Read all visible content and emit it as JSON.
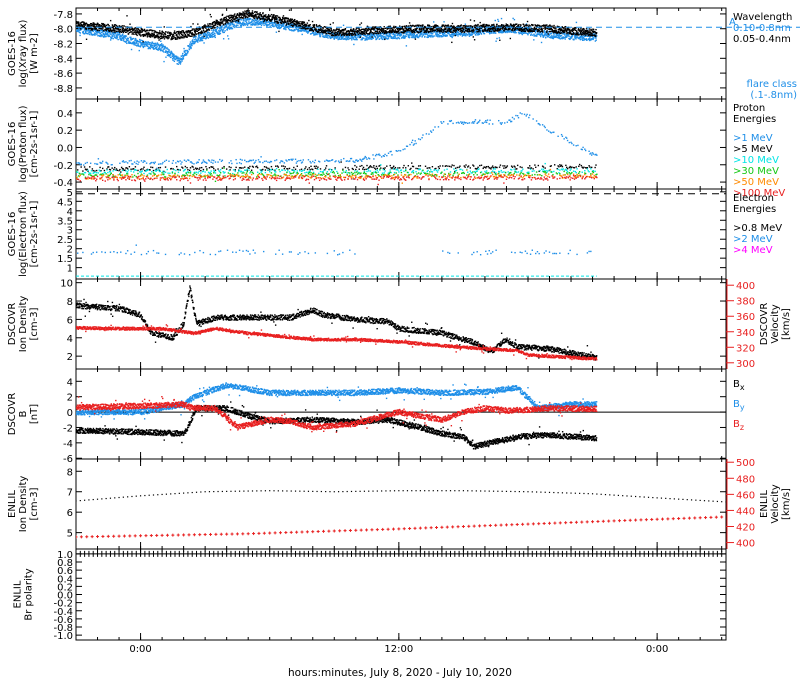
{
  "colors": {
    "black": "#000000",
    "blue": "#1f8fe8",
    "cyan": "#00e5e5",
    "green": "#14c814",
    "orange": "#ff8a00",
    "red": "#e82020",
    "magenta": "#ff00ff",
    "dodger": "#3399ff"
  },
  "time_axis": {
    "xlabel": "hours:minutes, July  8, 2020 - July 10, 2020",
    "ticks": [
      {
        "h": 0,
        "label": "0:00"
      },
      {
        "h": 12,
        "label": "12:00"
      },
      {
        "h": 24,
        "label": "0:00"
      }
    ],
    "minor_every_h": 1,
    "range_h": [
      -3,
      27.2
    ],
    "data_end_h": 21.2
  },
  "chart_data": [
    {
      "id": "xray",
      "type": "scatter",
      "ylabel": [
        "GOES-16",
        "log(Xray flux)",
        "[W m-2]"
      ],
      "ylim": [
        -8.95,
        -7.72
      ],
      "yticks": [
        -8.8,
        -8.6,
        -8.4,
        -8.2,
        -8.0,
        -7.8
      ],
      "ytick_labels": [
        "-8.8",
        "-8.6",
        "-8.4",
        "-8.2",
        "-8.0",
        "-7.8"
      ],
      "legend_title": [
        "Wavelength"
      ],
      "series": [
        {
          "name": "0.10-0.8nm",
          "color": "#1f8fe8",
          "profile": [
            [
              -3,
              -8.0
            ],
            [
              -1,
              -8.1
            ],
            [
              0,
              -8.2
            ],
            [
              1,
              -8.25
            ],
            [
              1.8,
              -8.45
            ],
            [
              2.5,
              -8.15
            ],
            [
              3.5,
              -8.05
            ],
            [
              4.5,
              -7.92
            ],
            [
              5.5,
              -7.9
            ],
            [
              7.5,
              -8.0
            ],
            [
              9,
              -8.1
            ],
            [
              11,
              -8.1
            ],
            [
              13,
              -8.07
            ],
            [
              15,
              -8.05
            ],
            [
              17,
              -8.0
            ],
            [
              19,
              -8.08
            ],
            [
              21.2,
              -8.12
            ]
          ]
        },
        {
          "name": "0.05-0.4nm",
          "color": "#000000",
          "profile": [
            [
              -3,
              -7.95
            ],
            [
              -1,
              -8.0
            ],
            [
              0,
              -8.05
            ],
            [
              1.5,
              -8.1
            ],
            [
              2.5,
              -8.05
            ],
            [
              4,
              -7.88
            ],
            [
              5,
              -7.8
            ],
            [
              6,
              -7.85
            ],
            [
              7.5,
              -7.95
            ],
            [
              9,
              -8.05
            ],
            [
              11,
              -8.02
            ],
            [
              13,
              -8.0
            ],
            [
              15,
              -8.0
            ],
            [
              17,
              -7.98
            ],
            [
              19,
              -8.0
            ],
            [
              21.2,
              -8.06
            ]
          ]
        }
      ],
      "reference_line": {
        "value": -7.98,
        "label": "A",
        "color": "#1f8fe8"
      },
      "flare_class_label": [
        "flare class",
        "(.1-.8nm)"
      ]
    },
    {
      "id": "proton",
      "type": "scatter",
      "ylabel": [
        "GOES-16",
        "log(Proton flux)",
        "[cm-2s-1sr-1]"
      ],
      "ylim": [
        -0.48,
        0.56
      ],
      "yticks": [
        -0.4,
        -0.2,
        0.0,
        0.2,
        0.4
      ],
      "ytick_labels": [
        "-0.4",
        "-0.2",
        "0.0",
        "0.2",
        "0.4"
      ],
      "legend_title": [
        "Proton",
        "Energies"
      ],
      "series": [
        {
          "name": ">1 MeV",
          "color": "#1f8fe8",
          "profile": [
            [
              -3,
              -0.18
            ],
            [
              10,
              -0.15
            ],
            [
              12,
              -0.05
            ],
            [
              13,
              0.1
            ],
            [
              14,
              0.28
            ],
            [
              15.5,
              0.3
            ],
            [
              17,
              0.28
            ],
            [
              17.8,
              0.4
            ],
            [
              19,
              0.2
            ],
            [
              21.2,
              -0.1
            ]
          ]
        },
        {
          "name": ">5 MeV",
          "color": "#000000",
          "profile": [
            [
              -3,
              -0.25
            ],
            [
              21.2,
              -0.22
            ]
          ]
        },
        {
          "name": ">10 MeV",
          "color": "#00e5e5",
          "profile": [
            [
              -3,
              -0.28
            ],
            [
              21.2,
              -0.27
            ]
          ]
        },
        {
          "name": ">30 MeV",
          "color": "#14c814",
          "profile": [
            [
              -3,
              -0.32
            ],
            [
              21.2,
              -0.3
            ]
          ]
        },
        {
          "name": ">50 MeV",
          "color": "#ff8a00",
          "profile": [
            [
              -3,
              -0.34
            ],
            [
              21.2,
              -0.33
            ]
          ]
        },
        {
          "name": ">100 MeV",
          "color": "#e82020",
          "profile": [
            [
              -3,
              -0.36
            ],
            [
              21.2,
              -0.35
            ]
          ]
        }
      ]
    },
    {
      "id": "electron",
      "type": "scatter",
      "ylabel": [
        "GOES-16",
        "log(Electron flux)",
        "[cm-2s-1sr-1]"
      ],
      "ylim": [
        0.4,
        5.15
      ],
      "yticks": [
        1,
        1.5,
        2,
        2.5,
        3,
        3.5,
        4,
        4.5,
        5
      ],
      "ytick_labels": [
        "1",
        "1.5",
        "2",
        "2.5",
        "3",
        "3.5",
        "4",
        "4.5",
        "5"
      ],
      "legend_title": [
        "Electron",
        "Energies"
      ],
      "series": [
        {
          "name": ">0.8 MeV",
          "color": "#000000"
        },
        {
          "name": ">2 MeV",
          "color": "#1f8fe8",
          "profile": [
            [
              -3,
              1.8
            ],
            [
              21.2,
              1.8
            ]
          ]
        },
        {
          "name": ">4 MeV",
          "color": "#ff00ff"
        }
      ],
      "dashed_level": 4.9,
      "floor_level": 0.55
    },
    {
      "id": "dscovr_density",
      "type": "scatter",
      "ylabel": [
        "DSCOVR",
        "Ion Density",
        "[cm-3]"
      ],
      "ylim": [
        0.6,
        10.4
      ],
      "yticks": [
        2,
        4,
        6,
        8,
        10
      ],
      "ytick_labels": [
        "2",
        "4",
        "6",
        "8",
        "10"
      ],
      "y2label": [
        "DSCOVR",
        "Velocity",
        "[km/s]"
      ],
      "y2lim": [
        292,
        408
      ],
      "y2ticks": [
        300,
        320,
        340,
        360,
        380,
        400
      ],
      "y2tick_labels": [
        "300",
        "320",
        "340",
        "360",
        "380",
        "400"
      ],
      "series": [
        {
          "name": "density",
          "color": "#000000",
          "axis": "left",
          "profile": [
            [
              -3,
              7.5
            ],
            [
              -1,
              7.2
            ],
            [
              0,
              6.5
            ],
            [
              0.5,
              4.5
            ],
            [
              1.5,
              4.0
            ],
            [
              2,
              5.5
            ],
            [
              2.3,
              9.5
            ],
            [
              2.6,
              5.5
            ],
            [
              3.5,
              6.2
            ],
            [
              7,
              6.2
            ],
            [
              8,
              7.0
            ],
            [
              8.5,
              6.5
            ],
            [
              10,
              6.0
            ],
            [
              11,
              5.8
            ],
            [
              11.5,
              5.8
            ],
            [
              12,
              5.0
            ],
            [
              14,
              4.5
            ],
            [
              15.5,
              3.5
            ],
            [
              16.3,
              2.5
            ],
            [
              17,
              3.8
            ],
            [
              17.5,
              3.0
            ],
            [
              19,
              2.8
            ],
            [
              21.2,
              1.8
            ]
          ]
        },
        {
          "name": "velocity",
          "color": "#e82020",
          "axis": "right",
          "profile": [
            [
              -3,
              345
            ],
            [
              -1,
              344
            ],
            [
              1,
              344
            ],
            [
              2.5,
              338
            ],
            [
              3.5,
              344
            ],
            [
              5,
              338
            ],
            [
              8,
              330
            ],
            [
              10,
              330
            ],
            [
              12,
              327
            ],
            [
              14,
              322
            ],
            [
              16,
              318
            ],
            [
              17.5,
              316
            ],
            [
              18,
              310
            ],
            [
              21.2,
              305
            ]
          ]
        }
      ]
    },
    {
      "id": "dscovr_b",
      "type": "scatter",
      "ylabel": [
        "DSCOVR",
        "B",
        "[nT]"
      ],
      "ylim": [
        -6.1,
        5.6
      ],
      "yticks": [
        -6,
        -4,
        -2,
        0,
        2,
        4
      ],
      "ytick_labels": [
        "-6",
        "-4",
        "-2",
        "0",
        "2",
        "4"
      ],
      "zero_line": true,
      "series": [
        {
          "name": "B",
          "sub": "x",
          "color": "#000000",
          "profile": [
            [
              -3,
              -2.4
            ],
            [
              0,
              -2.6
            ],
            [
              2,
              -2.8
            ],
            [
              2.2,
              -2.0
            ],
            [
              2.6,
              0.5
            ],
            [
              4,
              0.5
            ],
            [
              5,
              -0.5
            ],
            [
              6,
              -1.2
            ],
            [
              8,
              -1.0
            ],
            [
              10,
              -1.3
            ],
            [
              11.5,
              -1.0
            ],
            [
              13,
              -2.0
            ],
            [
              14,
              -2.8
            ],
            [
              15,
              -3.2
            ],
            [
              15.5,
              -4.5
            ],
            [
              16.2,
              -4.0
            ],
            [
              17,
              -3.6
            ],
            [
              17.5,
              -3.2
            ],
            [
              19,
              -3.0
            ],
            [
              21.2,
              -3.4
            ]
          ]
        },
        {
          "name": "B",
          "sub": "y",
          "color": "#1f8fe8",
          "profile": [
            [
              -3,
              0.0
            ],
            [
              0,
              0.0
            ],
            [
              1,
              0.5
            ],
            [
              2,
              1.0
            ],
            [
              2.5,
              2.0
            ],
            [
              4,
              3.5
            ],
            [
              5,
              3.0
            ],
            [
              6,
              2.5
            ],
            [
              8,
              2.5
            ],
            [
              10,
              2.5
            ],
            [
              12,
              2.8
            ],
            [
              14,
              2.5
            ],
            [
              16,
              2.6
            ],
            [
              17.5,
              3.2
            ],
            [
              18.5,
              0.5
            ],
            [
              20,
              1.0
            ],
            [
              21.2,
              1.0
            ]
          ]
        },
        {
          "name": "B",
          "sub": "z",
          "color": "#e82020",
          "profile": [
            [
              -3,
              0.6
            ],
            [
              0,
              0.8
            ],
            [
              2,
              1.0
            ],
            [
              2.5,
              0.5
            ],
            [
              3.5,
              0.5
            ],
            [
              4.5,
              -2.0
            ],
            [
              6,
              -1.0
            ],
            [
              7,
              -1.2
            ],
            [
              8,
              -2.0
            ],
            [
              10,
              -1.5
            ],
            [
              12,
              0.0
            ],
            [
              13,
              -0.5
            ],
            [
              14,
              -1.0
            ],
            [
              15,
              0.0
            ],
            [
              16,
              0.5
            ],
            [
              17,
              0.2
            ],
            [
              18,
              0.3
            ],
            [
              19,
              0.5
            ],
            [
              21.2,
              0.4
            ]
          ]
        }
      ]
    },
    {
      "id": "enlil_density",
      "type": "line",
      "ylabel": [
        "ENLIL",
        "Ion Density",
        "[cm-3]"
      ],
      "ylim": [
        4.2,
        8.6
      ],
      "yticks": [
        5,
        6,
        7,
        8
      ],
      "ytick_labels": [
        "5",
        "6",
        "7",
        "8"
      ],
      "y2label": [
        "ENLIL",
        "Velocity",
        "[km/s]"
      ],
      "y2lim": [
        392,
        504
      ],
      "y2ticks": [
        400,
        420,
        440,
        460,
        480,
        500
      ],
      "y2tick_labels": [
        "400",
        "420",
        "440",
        "460",
        "480",
        "500"
      ],
      "series": [
        {
          "name": "density",
          "color": "#000000",
          "axis": "left",
          "profile": [
            [
              -3,
              6.55
            ],
            [
              0,
              6.8
            ],
            [
              3,
              7.0
            ],
            [
              6,
              7.05
            ],
            [
              9,
              7.0
            ],
            [
              12,
              7.05
            ],
            [
              15,
              7.05
            ],
            [
              18,
              7.0
            ],
            [
              21,
              6.9
            ],
            [
              24,
              6.7
            ],
            [
              27.2,
              6.5
            ]
          ]
        },
        {
          "name": "velocity",
          "color": "#e82020",
          "axis": "right",
          "profile": [
            [
              -3,
              407
            ],
            [
              5,
              411
            ],
            [
              12,
              417
            ],
            [
              18,
              423
            ],
            [
              24,
              429
            ],
            [
              27.2,
              432
            ]
          ]
        }
      ]
    },
    {
      "id": "enlil_polarity",
      "type": "line",
      "ylabel": [
        "ENLIL",
        "Br polarity"
      ],
      "ylim": [
        -1.12,
        1.12
      ],
      "yticks": [
        -1.0,
        -0.8,
        -0.6,
        -0.4,
        -0.2,
        0.0,
        0.2,
        0.4,
        0.6,
        0.8,
        1.0
      ],
      "ytick_labels": [
        "-1.0",
        "-0.8",
        "-0.6",
        "-0.4",
        "-0.2",
        "0.0",
        "0.2",
        "0.4",
        "0.6",
        "0.8",
        "1.0"
      ],
      "series": [
        {
          "name": "polarity",
          "color": "#000000",
          "axis": "left",
          "profile": [
            [
              -3,
              1.0
            ],
            [
              27.2,
              1.0
            ]
          ]
        }
      ]
    }
  ]
}
